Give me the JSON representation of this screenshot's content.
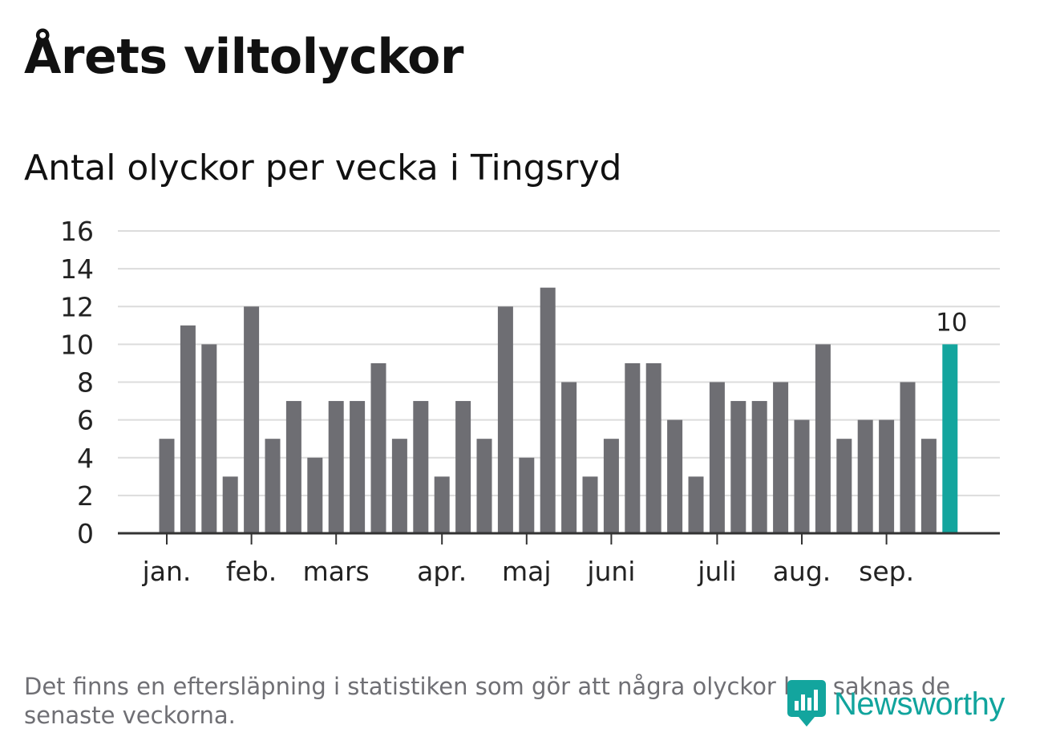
{
  "title": "Årets viltolyckor",
  "subtitle": "Antal olyckor per vecka i Tingsryd",
  "footnote": "Det finns en eftersläpning i statistiken som gör att några olyckor kan saknas de senaste veckorna.",
  "logo": {
    "text": "Newsworthy",
    "icon": "newsworthy-logo-icon"
  },
  "colors": {
    "bar": "#6e6e73",
    "highlight": "#13a59e",
    "grid": "#dcdcdc",
    "axis": "#333333"
  },
  "chart_data": {
    "type": "bar",
    "ylim": [
      0,
      16
    ],
    "yticks": [
      0,
      2,
      4,
      6,
      8,
      10,
      12,
      14,
      16
    ],
    "grid": true,
    "values": [
      5,
      11,
      10,
      3,
      12,
      5,
      7,
      4,
      7,
      7,
      9,
      5,
      7,
      3,
      7,
      5,
      12,
      4,
      13,
      8,
      3,
      5,
      9,
      9,
      6,
      3,
      8,
      7,
      7,
      8,
      6,
      10,
      5,
      6,
      6,
      8,
      5,
      10
    ],
    "highlight_index": 37,
    "data_label": "10",
    "month_labels": [
      {
        "label": "jan.",
        "bar": 0
      },
      {
        "label": "feb.",
        "bar": 4
      },
      {
        "label": "mars",
        "bar": 8
      },
      {
        "label": "apr.",
        "bar": 13
      },
      {
        "label": "maj",
        "bar": 17
      },
      {
        "label": "juni",
        "bar": 21
      },
      {
        "label": "juli",
        "bar": 26
      },
      {
        "label": "aug.",
        "bar": 30
      },
      {
        "label": "sep.",
        "bar": 34
      }
    ]
  }
}
